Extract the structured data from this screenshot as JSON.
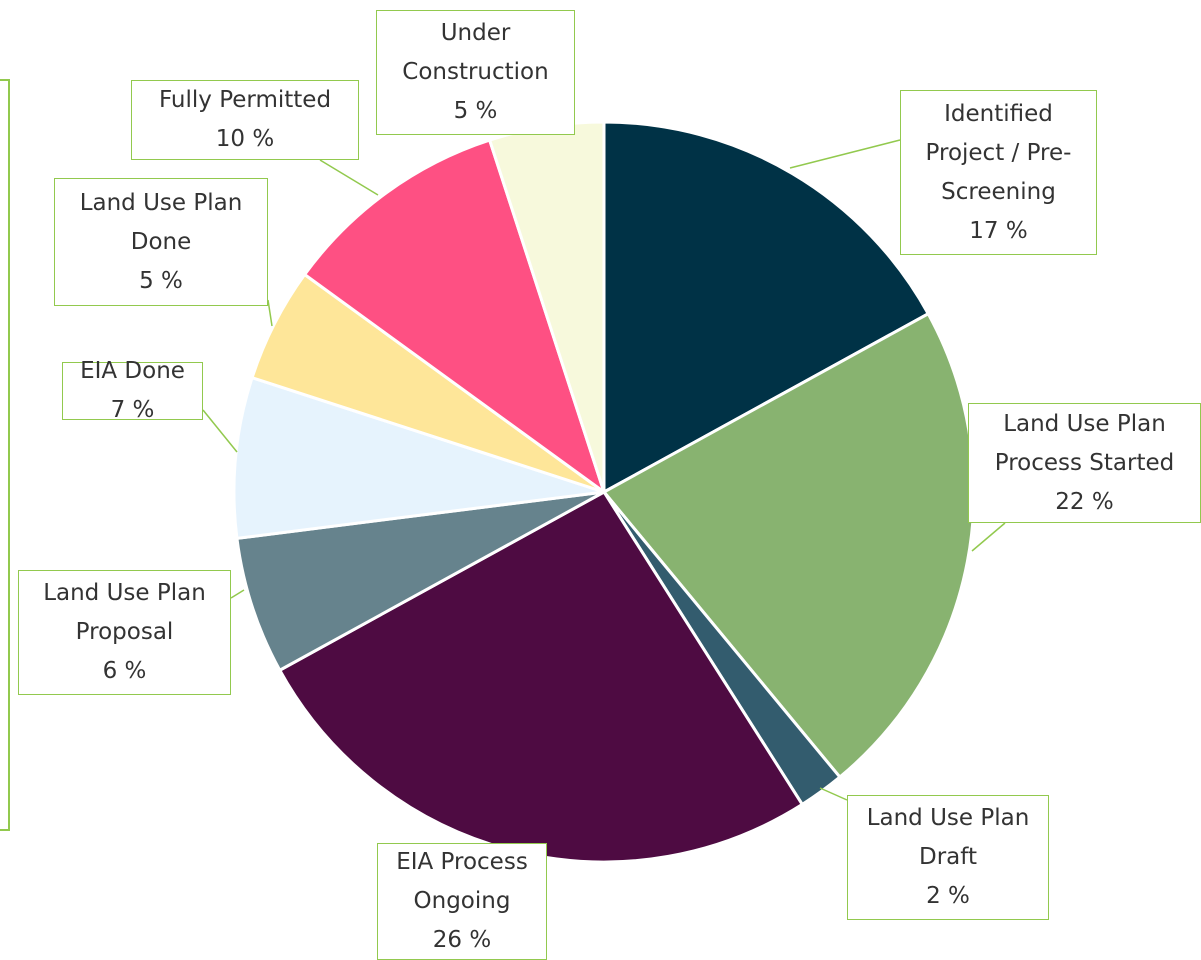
{
  "chart_data": {
    "type": "pie",
    "categories": [
      "Identified Project / Pre-Screening",
      "Land Use Plan Process Started",
      "Land Use Plan Draft",
      "EIA Process Ongoing",
      "Land Use Plan Proposal",
      "EIA Done",
      "Land Use Plan Done",
      "Fully Permitted",
      "Under Construction"
    ],
    "values": [
      17,
      22,
      2,
      26,
      6,
      7,
      5,
      10,
      5
    ],
    "value_labels": [
      "17 %",
      "22 %",
      "2 %",
      "26 %",
      "6 %",
      "7 %",
      "5 %",
      "10 %",
      "5 %"
    ],
    "colors": [
      "#003246",
      "#88b370",
      "#335c6e",
      "#4e0b42",
      "#66838d",
      "#e6f3fd",
      "#fee699",
      "#fe5083",
      "#f7f9dc"
    ]
  }
}
